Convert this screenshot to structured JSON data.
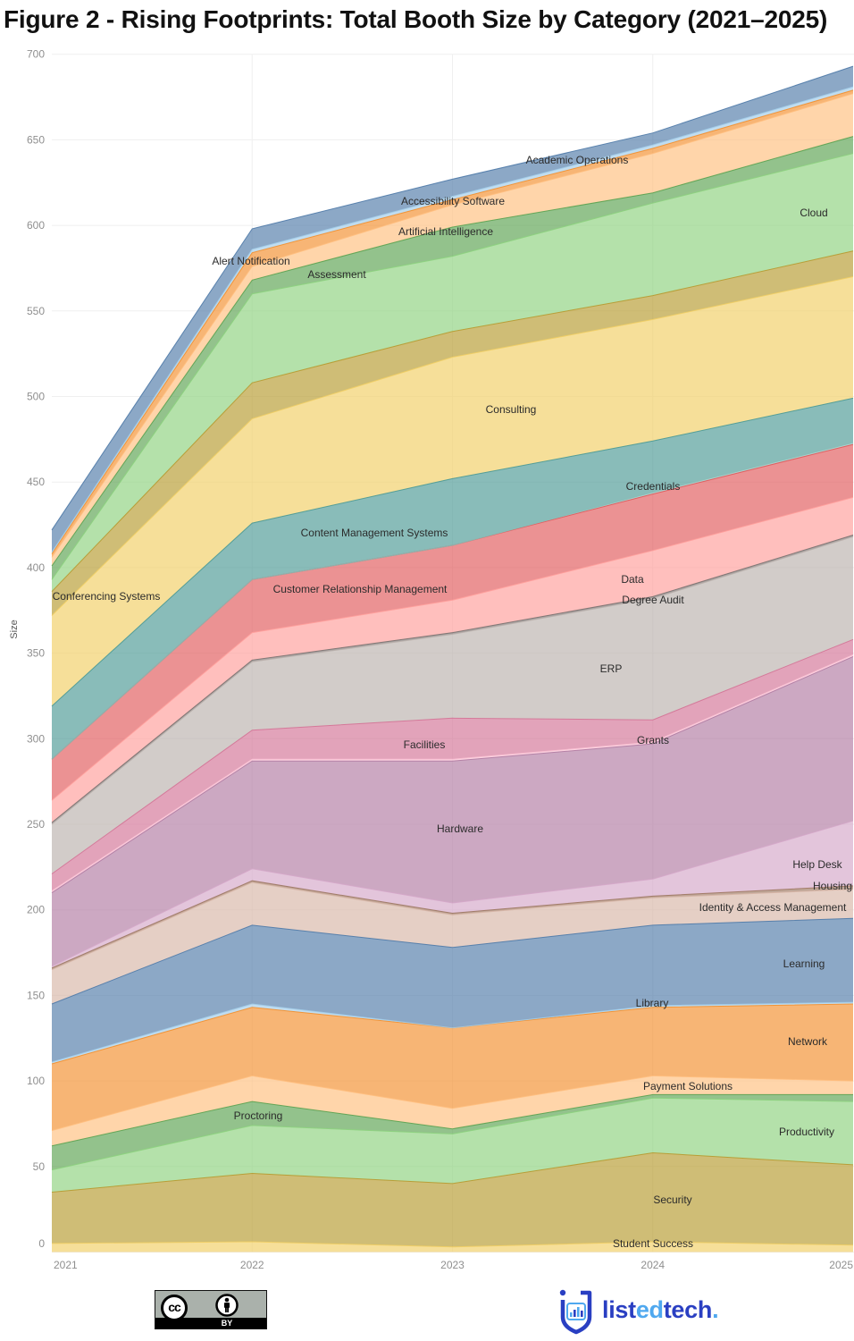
{
  "chart_data": {
    "type": "area",
    "stacked": true,
    "title": "Figure 2 - Rising Footprints: Total Booth Size by Category (2021–2025)",
    "ylabel": "Size",
    "x": [
      "2021",
      "2022",
      "2023",
      "2024",
      "2025"
    ],
    "ylim": [
      0,
      700
    ],
    "yticks": [
      0,
      50,
      100,
      150,
      200,
      250,
      300,
      350,
      400,
      450,
      500,
      550,
      600,
      650,
      700
    ],
    "grid": true,
    "series": [
      {
        "name": "Student Success",
        "color": "#f1ce63",
        "values": [
          5,
          6,
          3,
          6,
          4
        ]
      },
      {
        "name": "Security",
        "color": "#b6992d",
        "values": [
          30,
          40,
          37,
          52,
          47
        ]
      },
      {
        "name": "Productivity",
        "color": "#8cd17d",
        "values": [
          13,
          28,
          29,
          32,
          37
        ]
      },
      {
        "name": "Proctoring",
        "color": "#59a14f",
        "values": [
          14,
          14,
          3,
          2,
          4
        ]
      },
      {
        "name": "Payment Solutions",
        "color": "#ffbe7d",
        "values": [
          9,
          15,
          12,
          11,
          8
        ]
      },
      {
        "name": "Network",
        "color": "#f28e2b",
        "values": [
          39,
          40,
          47,
          40,
          45
        ]
      },
      {
        "name": "Library",
        "color": "#a0cbe8",
        "values": [
          1,
          2,
          0,
          1,
          1
        ]
      },
      {
        "name": "Learning",
        "color": "#4e79a7",
        "values": [
          34,
          46,
          47,
          47,
          49
        ]
      },
      {
        "name": "Identity & Access Management",
        "color": "#d7b5a6",
        "values": [
          20,
          25,
          19,
          16,
          17
        ]
      },
      {
        "name": "Housing",
        "color": "#9d7660",
        "values": [
          1,
          1,
          1,
          1,
          2
        ]
      },
      {
        "name": "Help Desk",
        "color": "#d4a6c8",
        "values": [
          1,
          7,
          6,
          10,
          38
        ]
      },
      {
        "name": "Hardware",
        "color": "#b07aa1",
        "values": [
          43,
          63,
          83,
          79,
          96
        ]
      },
      {
        "name": "Grants",
        "color": "#fabfd2",
        "values": [
          1,
          1,
          1,
          1,
          1
        ]
      },
      {
        "name": "Facilities",
        "color": "#d37295",
        "values": [
          10,
          17,
          24,
          13,
          9
        ]
      },
      {
        "name": "ERP",
        "color": "#bab0ac",
        "values": [
          29,
          40,
          49,
          71,
          60
        ]
      },
      {
        "name": "Degree Audit",
        "color": "#79706e",
        "values": [
          1,
          1,
          1,
          1,
          1
        ]
      },
      {
        "name": "Data",
        "color": "#ff9d9a",
        "values": [
          13,
          16,
          19,
          27,
          22
        ]
      },
      {
        "name": "Customer Relationship Management",
        "color": "#e15759",
        "values": [
          24,
          31,
          32,
          33,
          31
        ]
      },
      {
        "name": "Credentials",
        "color": "#86bcb6",
        "values": [
          0,
          0,
          0,
          1,
          1
        ]
      },
      {
        "name": "Content Management Systems",
        "color": "#499894",
        "values": [
          31,
          33,
          39,
          30,
          26
        ]
      },
      {
        "name": "Consulting",
        "color": "#f1ce63",
        "values": [
          53,
          61,
          71,
          71,
          71
        ]
      },
      {
        "name": "Conferencing Systems",
        "color": "#b6992d",
        "values": [
          14,
          21,
          15,
          14,
          15
        ]
      },
      {
        "name": "Cloud",
        "color": "#8cd17d",
        "values": [
          7,
          52,
          44,
          54,
          57
        ]
      },
      {
        "name": "Assessment",
        "color": "#59a14f",
        "values": [
          8,
          8,
          17,
          6,
          10
        ]
      },
      {
        "name": "Artificial Intelligence",
        "color": "#ffbe7d",
        "values": [
          5,
          8,
          13,
          23,
          25
        ]
      },
      {
        "name": "Alert Notification",
        "color": "#f28e2b",
        "values": [
          2,
          8,
          3,
          3,
          2
        ]
      },
      {
        "name": "Accessibility Software",
        "color": "#a0cbe8",
        "values": [
          1,
          2,
          2,
          2,
          2
        ]
      },
      {
        "name": "Academic Operations",
        "color": "#4e79a7",
        "values": [
          13,
          12,
          10,
          7,
          12
        ]
      }
    ]
  },
  "footer": {
    "license": {
      "cc_text": "cc",
      "by_label": "BY"
    },
    "logo": {
      "prefix": "list",
      "highlight": "ed",
      "suffix": "tech",
      "dot": "."
    },
    "colors": {
      "logo_dark": "#2a3fc2",
      "logo_light": "#4fa8ef"
    }
  }
}
